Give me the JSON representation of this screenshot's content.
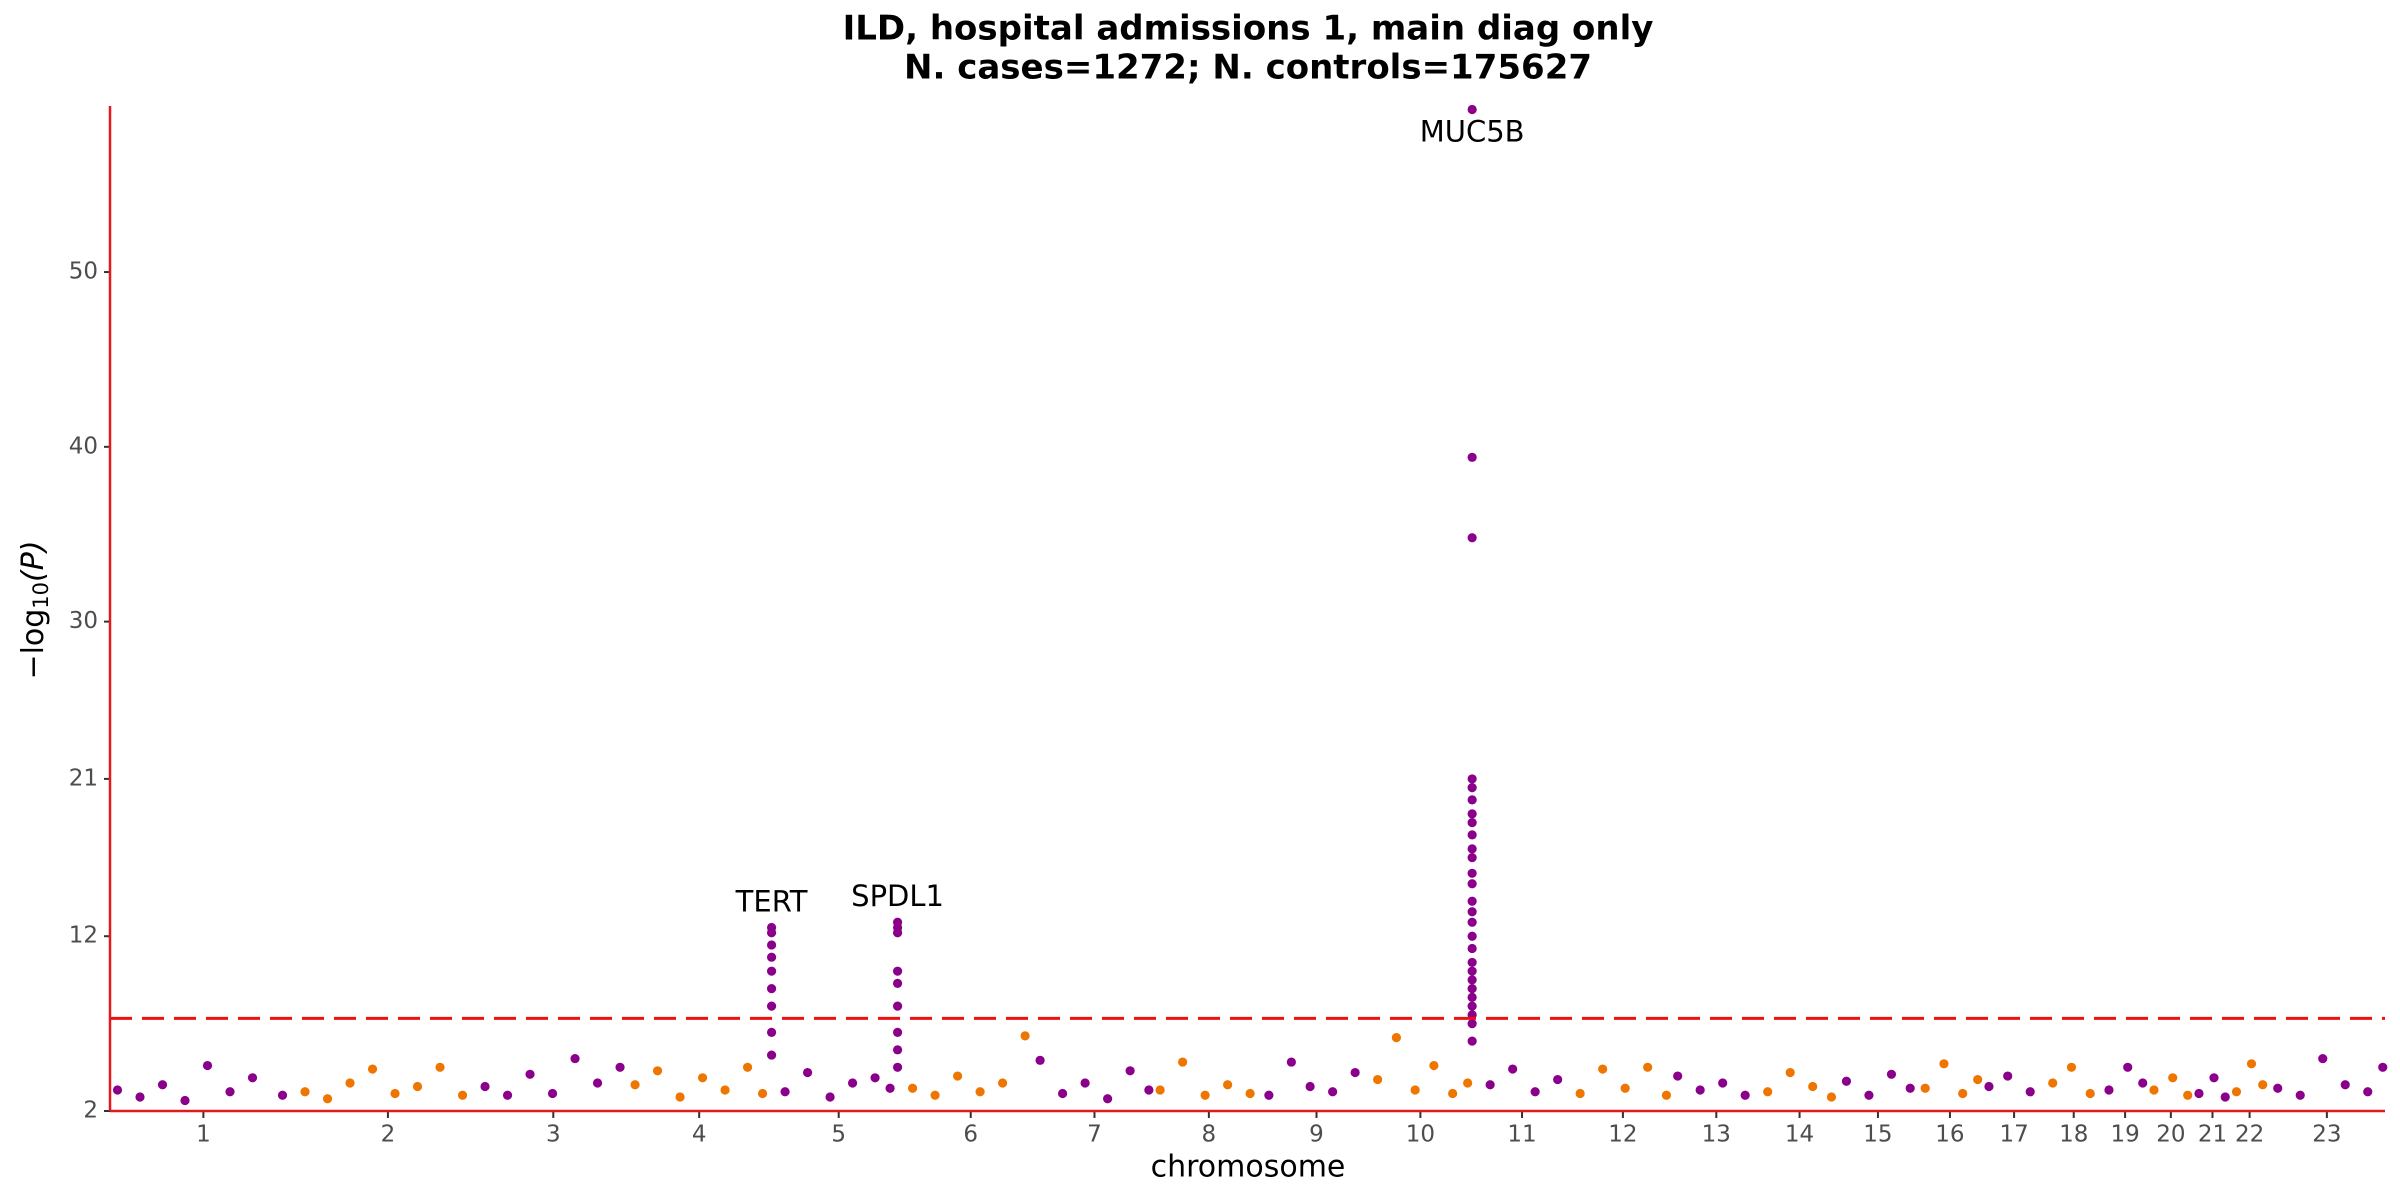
{
  "chart_data": {
    "type": "scatter",
    "title": [
      "ILD, hospital admissions 1, main diag only",
      "N. cases=1272; N. controls=175627"
    ],
    "xlabel": "chromosome",
    "ylabel": [
      "−log",
      "10",
      "(P)"
    ],
    "xlim": [
      0,
      3033
    ],
    "ylim": [
      2,
      59.5
    ],
    "yticks": [
      2,
      12,
      21,
      30,
      40,
      50
    ],
    "xticks": [
      {
        "value": 124.5,
        "label": "1"
      },
      {
        "value": 370.5,
        "label": "2"
      },
      {
        "value": 591,
        "label": "3"
      },
      {
        "value": 785.5,
        "label": "4"
      },
      {
        "value": 971.5,
        "label": "5"
      },
      {
        "value": 1147.5,
        "label": "6"
      },
      {
        "value": 1312.5,
        "label": "7"
      },
      {
        "value": 1465,
        "label": "8"
      },
      {
        "value": 1608.5,
        "label": "9"
      },
      {
        "value": 1747,
        "label": "10"
      },
      {
        "value": 1882.5,
        "label": "11"
      },
      {
        "value": 2017,
        "label": "12"
      },
      {
        "value": 2141.5,
        "label": "13"
      },
      {
        "value": 2252.5,
        "label": "14"
      },
      {
        "value": 2357,
        "label": "15"
      },
      {
        "value": 2453,
        "label": "16"
      },
      {
        "value": 2538.5,
        "label": "17"
      },
      {
        "value": 2618,
        "label": "18"
      },
      {
        "value": 2686.5,
        "label": "19"
      },
      {
        "value": 2747.5,
        "label": "20"
      },
      {
        "value": 2803,
        "label": "21"
      },
      {
        "value": 2852.5,
        "label": "22"
      },
      {
        "value": 2955.5,
        "label": "23"
      }
    ],
    "threshold": 7.3,
    "threshold_color": "#ee1111",
    "axis_color": "#e31a1c",
    "series": [
      {
        "color": "#8b008b",
        "x": [
          10,
          40,
          70,
          100,
          130,
          160,
          190,
          230,
          500,
          530,
          560,
          590,
          620,
          650,
          680,
          900,
          930,
          960,
          990,
          1020,
          1040,
          882,
          882,
          882,
          882,
          882,
          882,
          882,
          882,
          882,
          1050,
          1050,
          1050,
          1050,
          1050,
          1050,
          1050,
          1050,
          1050,
          1240,
          1270,
          1300,
          1330,
          1360,
          1385,
          1545,
          1575,
          1600,
          1630,
          1660,
          1816,
          1816,
          1816,
          1816,
          1816,
          1816,
          1816,
          1816,
          1816,
          1816,
          1816,
          1816,
          1816,
          1816,
          1816,
          1816,
          1816,
          1816,
          1816,
          1816,
          1816,
          1816,
          1816,
          1816,
          1816,
          1816,
          1816,
          1840,
          1870,
          1900,
          1930,
          2090,
          2120,
          2150,
          2180,
          2315,
          2345,
          2375,
          2400,
          2505,
          2530,
          2560,
          2665,
          2690,
          2710,
          2785,
          2805,
          2820,
          2890,
          2920,
          2950,
          2980,
          3010,
          3030
        ],
        "values": [
          3.2,
          2.8,
          3.5,
          2.6,
          4.6,
          3.1,
          3.9,
          2.9,
          3.4,
          2.9,
          4.1,
          3.0,
          5.0,
          3.6,
          4.5,
          3.1,
          4.2,
          2.8,
          3.6,
          3.9,
          3.3,
          12.5,
          12.2,
          11.5,
          10.8,
          10,
          9,
          8,
          6.5,
          5.2,
          12.8,
          12.5,
          12.2,
          10,
          9.3,
          8,
          6.5,
          5.5,
          4.5,
          4.9,
          3.0,
          3.6,
          2.7,
          4.3,
          3.2,
          2.9,
          4.8,
          3.4,
          3.1,
          4.2,
          59.3,
          39.4,
          34.8,
          21,
          20.5,
          19.8,
          19,
          18.5,
          17.8,
          17,
          16.5,
          15.6,
          15,
          14,
          13.4,
          12.8,
          12,
          11.3,
          10.5,
          10,
          9.5,
          9,
          8.5,
          8,
          7.5,
          7,
          6,
          3.5,
          4.4,
          3.1,
          3.8,
          4.0,
          3.2,
          3.6,
          2.9,
          3.7,
          2.9,
          4.1,
          3.3,
          3.4,
          4.0,
          3.1,
          3.2,
          4.5,
          3.6,
          3.0,
          3.9,
          2.8,
          3.3,
          2.9,
          5.0,
          3.5,
          3.1,
          4.5
        ]
      },
      {
        "color": "#ee7600",
        "x": [
          260,
          290,
          320,
          350,
          380,
          410,
          440,
          470,
          700,
          730,
          760,
          790,
          820,
          850,
          870,
          1070,
          1100,
          1130,
          1160,
          1190,
          1220,
          1400,
          1430,
          1460,
          1490,
          1520,
          1690,
          1715,
          1740,
          1765,
          1790,
          1810,
          1960,
          1990,
          2020,
          2050,
          2075,
          2210,
          2240,
          2270,
          2295,
          2420,
          2445,
          2470,
          2490,
          2590,
          2615,
          2640,
          2725,
          2750,
          2770,
          2835,
          2855,
          2870
        ],
        "values": [
          3.1,
          2.7,
          3.6,
          4.4,
          3.0,
          3.4,
          4.5,
          2.9,
          3.5,
          4.3,
          2.8,
          3.9,
          3.2,
          4.5,
          3.0,
          3.3,
          2.9,
          4.0,
          3.1,
          3.6,
          6.3,
          3.2,
          4.8,
          2.9,
          3.5,
          3.0,
          3.8,
          6.2,
          3.2,
          4.6,
          3.0,
          3.6,
          3.0,
          4.4,
          3.3,
          4.5,
          2.9,
          3.1,
          4.2,
          3.4,
          2.8,
          3.3,
          4.7,
          3.0,
          3.8,
          3.6,
          4.5,
          3.0,
          3.2,
          3.9,
          2.9,
          3.1,
          4.7,
          3.5
        ]
      }
    ],
    "annotations": [
      {
        "text": "TERT",
        "x": 882,
        "y": 12.5
      },
      {
        "text": "SPDL1",
        "x": 1050,
        "y": 12.8
      },
      {
        "text": "MUC5B",
        "x": 1816,
        "y": 59.3
      }
    ]
  }
}
